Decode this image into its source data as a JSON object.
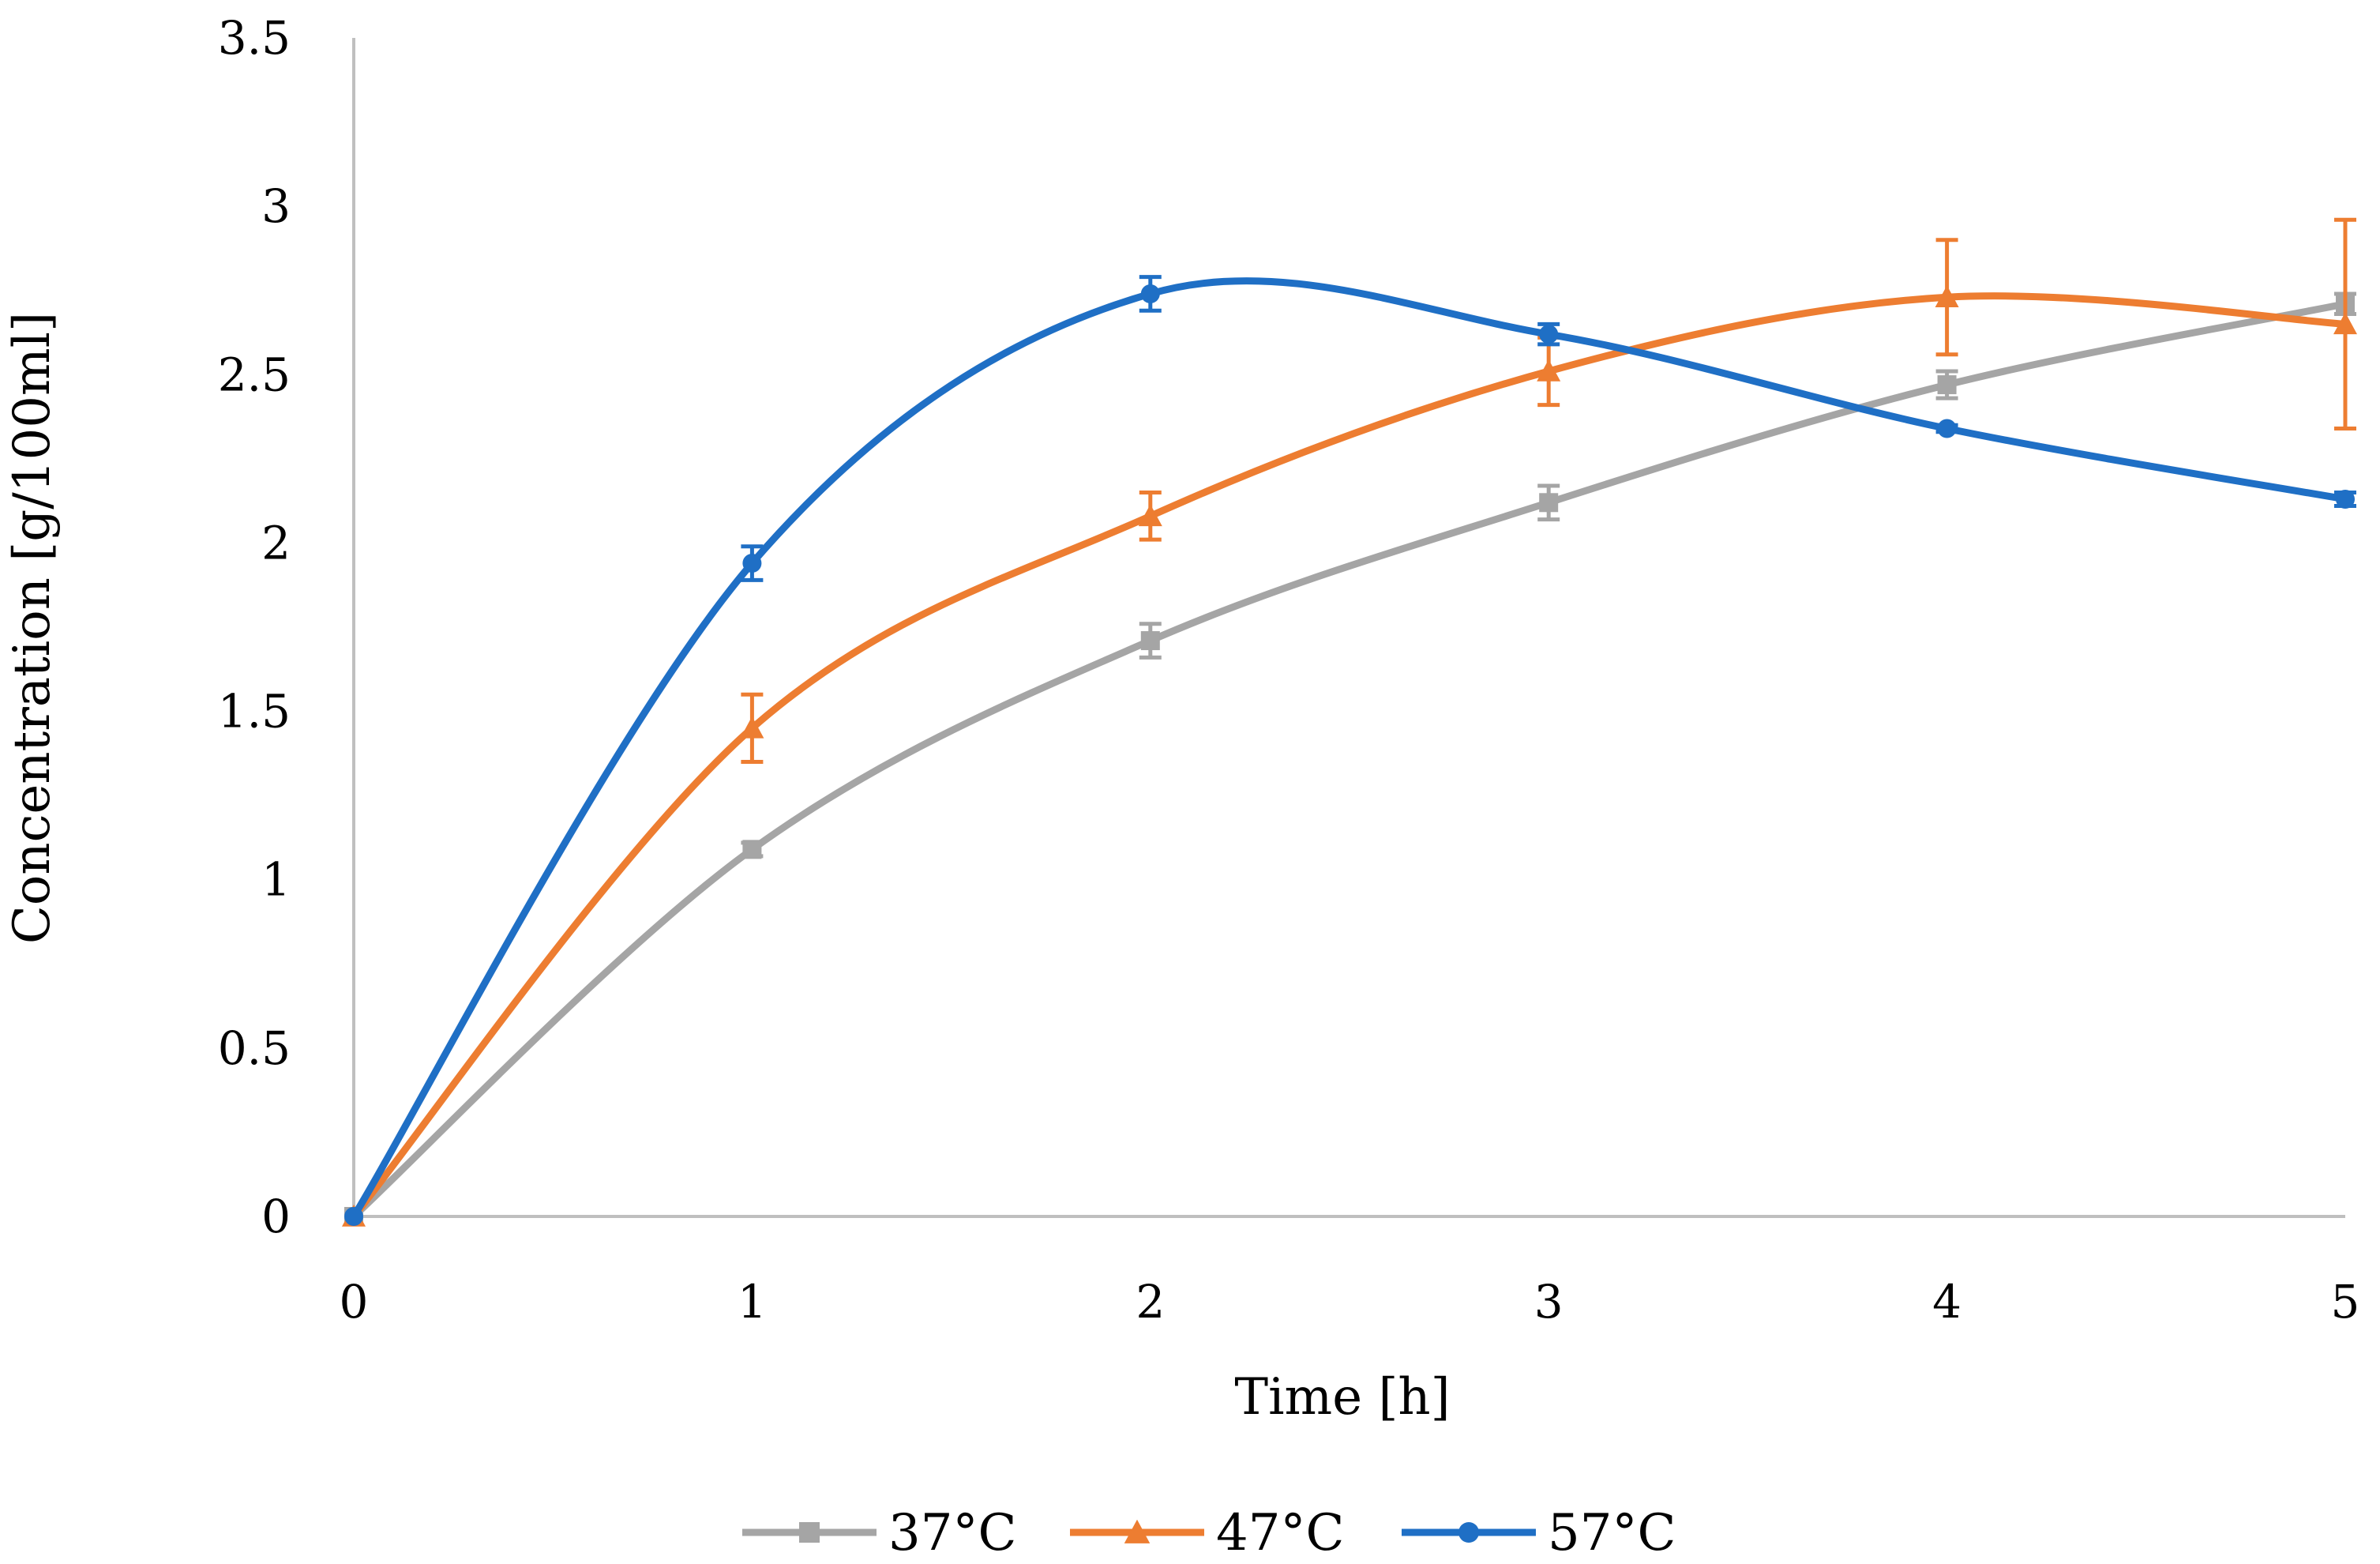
{
  "chart_data": {
    "type": "line",
    "title": "",
    "xlabel": "Time [h]",
    "ylabel": "Concentration [g/100ml]",
    "x": [
      0,
      1,
      2,
      3,
      4,
      5
    ],
    "xlim": [
      0,
      5
    ],
    "ylim": [
      0,
      3.5
    ],
    "x_ticks": [
      "0",
      "1",
      "2",
      "3",
      "4",
      "5"
    ],
    "y_ticks": [
      "0",
      "0.5",
      "1",
      "1.5",
      "2",
      "2.5",
      "3",
      "3.5"
    ],
    "grid": false,
    "legend_position": "bottom",
    "series": [
      {
        "name": "37°C",
        "color": "#A5A5A5",
        "marker": "square",
        "values": [
          0,
          1.09,
          1.71,
          2.12,
          2.47,
          2.71
        ],
        "errors": [
          0,
          0.02,
          0.05,
          0.05,
          0.04,
          0.03
        ]
      },
      {
        "name": "47°C",
        "color": "#ED7D31",
        "marker": "triangle",
        "values": [
          0,
          1.45,
          2.08,
          2.51,
          2.73,
          2.65
        ],
        "errors": [
          0,
          0.1,
          0.07,
          0.1,
          0.17,
          0.31
        ]
      },
      {
        "name": "57°C",
        "color": "#1F6FC5",
        "marker": "circle",
        "values": [
          0,
          1.94,
          2.74,
          2.62,
          2.34,
          2.13
        ],
        "errors": [
          0,
          0.05,
          0.05,
          0.03,
          0.01,
          0.02
        ]
      }
    ]
  }
}
